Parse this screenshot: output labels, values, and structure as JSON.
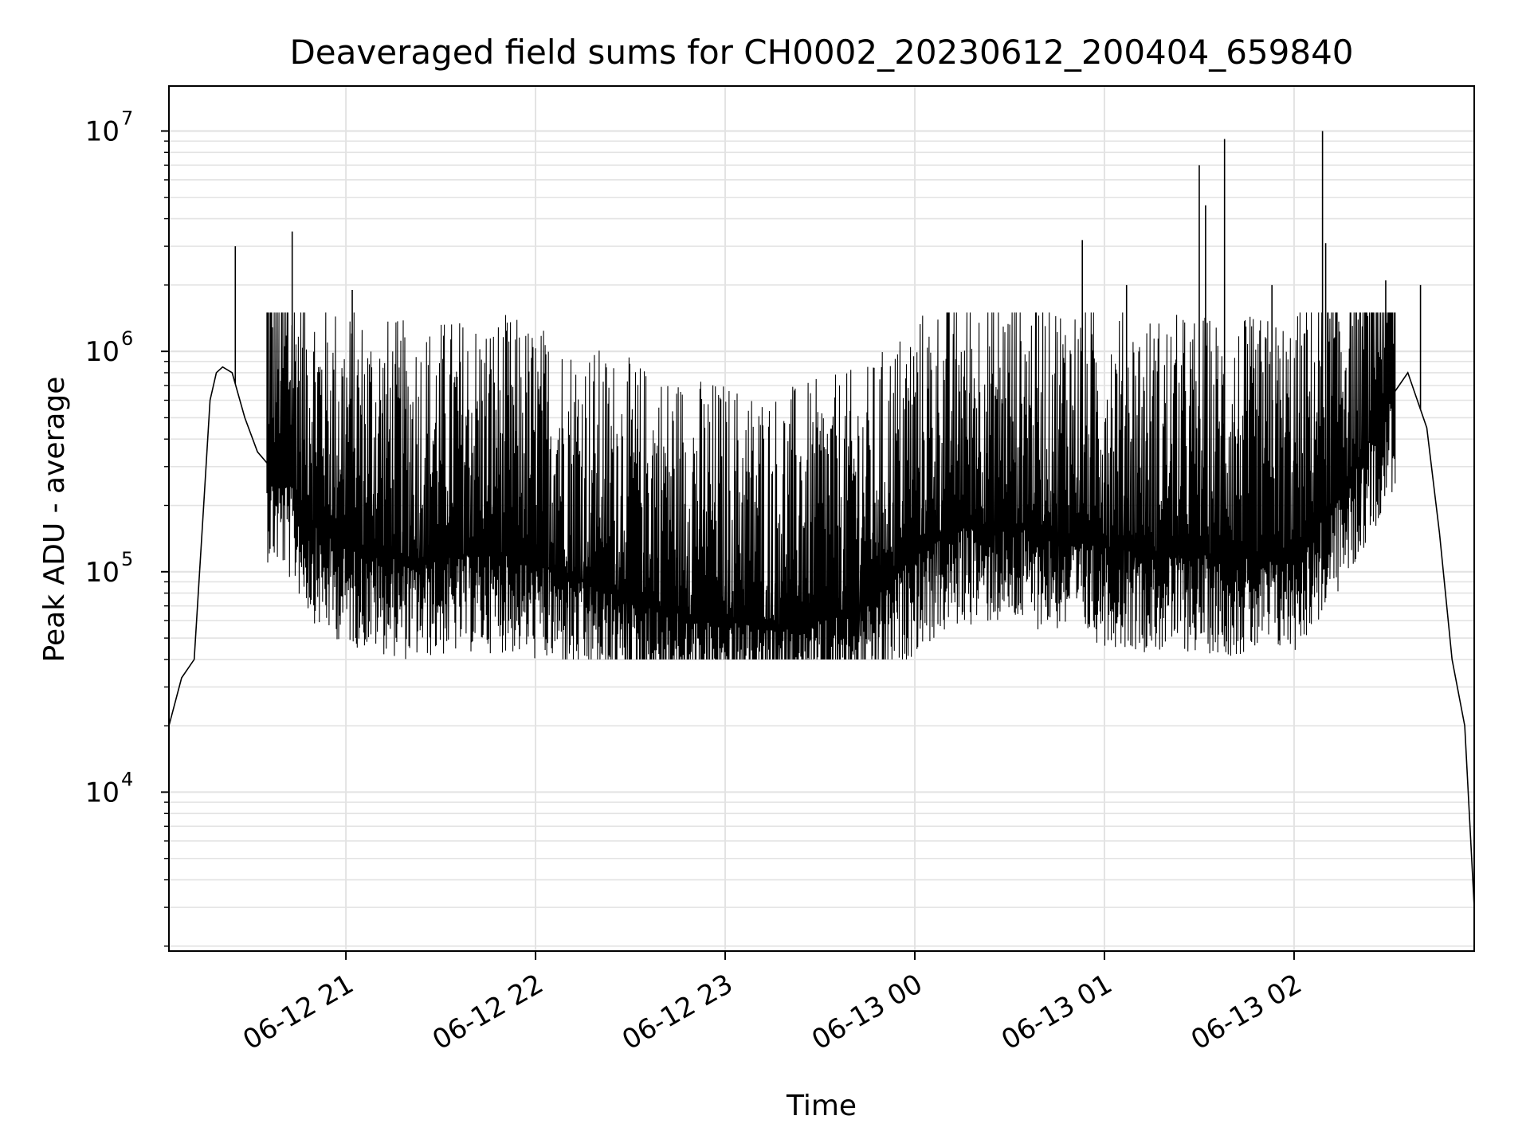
{
  "chart_data": {
    "type": "line",
    "title": "Deaveraged field sums for CH0002_20230612_200404_659840",
    "xlabel": "Time",
    "ylabel": "Peak ADU - average",
    "yscale": "log",
    "ylim": [
      1900,
      16000000
    ],
    "xlim": [
      "2023-06-12 20:04",
      "2023-06-13 02:57"
    ],
    "grid": true,
    "line_color": "#000000",
    "x_ticks": [
      {
        "t": "2023-06-12 21:00",
        "label": "06-12 21"
      },
      {
        "t": "2023-06-12 22:00",
        "label": "06-12 22"
      },
      {
        "t": "2023-06-12 23:00",
        "label": "06-12 23"
      },
      {
        "t": "2023-06-13 00:00",
        "label": "06-13 00"
      },
      {
        "t": "2023-06-13 01:00",
        "label": "06-13 01"
      },
      {
        "t": "2023-06-13 02:00",
        "label": "06-13 02"
      }
    ],
    "y_ticks": [
      {
        "value": 10000,
        "base": "10",
        "exp": "4"
      },
      {
        "value": 100000,
        "base": "10",
        "exp": "5"
      },
      {
        "value": 1000000,
        "base": "10",
        "exp": "6"
      },
      {
        "value": 10000000,
        "base": "10",
        "exp": "7"
      }
    ],
    "series": [
      {
        "x": [
          "2023-06-12 20:04",
          "2023-06-12 20:08",
          "2023-06-12 20:12",
          "2023-06-12 20:15",
          "2023-06-12 20:17",
          "2023-06-12 20:19",
          "2023-06-12 20:21",
          "2023-06-12 20:24",
          "2023-06-12 20:28",
          "2023-06-12 20:32",
          "2023-06-12 20:36",
          "2023-06-12 20:40",
          "2023-06-12 20:44",
          "2023-06-12 20:48",
          "2023-06-12 20:52",
          "2023-06-12 20:56",
          "2023-06-12 21:00",
          "2023-06-12 21:10",
          "2023-06-12 21:20",
          "2023-06-12 21:30",
          "2023-06-12 21:40",
          "2023-06-12 21:50",
          "2023-06-12 22:00",
          "2023-06-12 22:15",
          "2023-06-12 22:30",
          "2023-06-12 22:45",
          "2023-06-12 23:00",
          "2023-06-12 23:15",
          "2023-06-12 23:30",
          "2023-06-12 23:45",
          "2023-06-13 00:00",
          "2023-06-13 00:15",
          "2023-06-13 00:30",
          "2023-06-13 00:45",
          "2023-06-13 01:00",
          "2023-06-13 01:15",
          "2023-06-13 01:30",
          "2023-06-13 01:45",
          "2023-06-13 02:00",
          "2023-06-13 02:10",
          "2023-06-13 02:20",
          "2023-06-13 02:30",
          "2023-06-13 02:36",
          "2023-06-13 02:42",
          "2023-06-13 02:46",
          "2023-06-13 02:50",
          "2023-06-13 02:54",
          "2023-06-13 02:57"
        ],
        "y": [
          20000,
          33000,
          40000,
          200000,
          600000,
          800000,
          850000,
          800000,
          500000,
          350000,
          300000,
          280000,
          230000,
          180000,
          150000,
          140000,
          130000,
          120000,
          110000,
          115000,
          120000,
          120000,
          110000,
          90000,
          75000,
          65000,
          60000,
          55000,
          60000,
          70000,
          120000,
          160000,
          160000,
          150000,
          130000,
          120000,
          120000,
          115000,
          120000,
          180000,
          300000,
          600000,
          800000,
          450000,
          150000,
          40000,
          20000,
          3000
        ]
      }
    ],
    "spikes": [
      {
        "t": "2023-06-12 20:25",
        "y": 3000000
      },
      {
        "t": "2023-06-12 20:43",
        "y": 3500000
      },
      {
        "t": "2023-06-12 21:02",
        "y": 1900000
      },
      {
        "t": "2023-06-13 00:53",
        "y": 3200000
      },
      {
        "t": "2023-06-13 01:07",
        "y": 2000000
      },
      {
        "t": "2023-06-13 01:30",
        "y": 7000000
      },
      {
        "t": "2023-06-13 01:32",
        "y": 4600000
      },
      {
        "t": "2023-06-13 01:38",
        "y": 9200000
      },
      {
        "t": "2023-06-13 01:53",
        "y": 2000000
      },
      {
        "t": "2023-06-13 02:09",
        "y": 10000000
      },
      {
        "t": "2023-06-13 02:10",
        "y": 3100000
      },
      {
        "t": "2023-06-13 02:29",
        "y": 2100000
      },
      {
        "t": "2023-06-13 02:40",
        "y": 2000000
      }
    ]
  }
}
